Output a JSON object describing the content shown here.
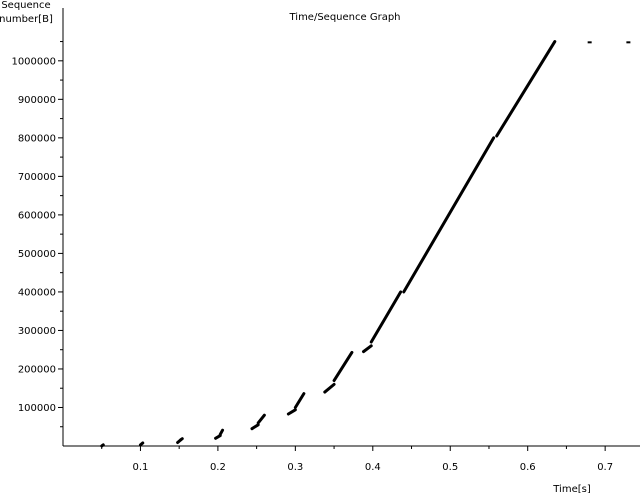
{
  "chart_data": {
    "type": "scatter",
    "title": "Time/Sequence Graph",
    "ylabel_lines": [
      "Sequence",
      "number[B]"
    ],
    "xlabel": "Time[s]",
    "xlim": [
      0.0,
      0.745
    ],
    "ylim": [
      0,
      1080000
    ],
    "x_ticks": [
      {
        "v": 0.1,
        "label": "0.1"
      },
      {
        "v": 0.2,
        "label": "0.2"
      },
      {
        "v": 0.3,
        "label": "0.3"
      },
      {
        "v": 0.4,
        "label": "0.4"
      },
      {
        "v": 0.5,
        "label": "0.5"
      },
      {
        "v": 0.6,
        "label": "0.6"
      },
      {
        "v": 0.7,
        "label": "0.7"
      }
    ],
    "y_ticks": [
      {
        "v": 100000,
        "label": "100000"
      },
      {
        "v": 200000,
        "label": "200000"
      },
      {
        "v": 300000,
        "label": "300000"
      },
      {
        "v": 400000,
        "label": "400000"
      },
      {
        "v": 500000,
        "label": "500000"
      },
      {
        "v": 600000,
        "label": "600000"
      },
      {
        "v": 700000,
        "label": "700000"
      },
      {
        "v": 800000,
        "label": "800000"
      },
      {
        "v": 900000,
        "label": "900000"
      },
      {
        "v": 1000000,
        "label": "1000000"
      }
    ],
    "segments": [
      {
        "x": [
          0.05,
          0.052
        ],
        "y": [
          0,
          3000
        ]
      },
      {
        "x": [
          0.1,
          0.103
        ],
        "y": [
          3000,
          8000
        ]
      },
      {
        "x": [
          0.148,
          0.152
        ],
        "y": [
          9000,
          16000
        ]
      },
      {
        "x": [
          0.152,
          0.154
        ],
        "y": [
          16000,
          19000
        ]
      },
      {
        "x": [
          0.197,
          0.203
        ],
        "y": [
          20000,
          27000
        ]
      },
      {
        "x": [
          0.203,
          0.206
        ],
        "y": [
          30000,
          41000
        ]
      },
      {
        "x": [
          0.244,
          0.252
        ],
        "y": [
          45000,
          55000
        ]
      },
      {
        "x": [
          0.252,
          0.26
        ],
        "y": [
          60000,
          80000
        ]
      },
      {
        "x": [
          0.291,
          0.3
        ],
        "y": [
          83000,
          94000
        ]
      },
      {
        "x": [
          0.3,
          0.311
        ],
        "y": [
          100000,
          136000
        ]
      },
      {
        "x": [
          0.338,
          0.35
        ],
        "y": [
          140000,
          160000
        ]
      },
      {
        "x": [
          0.35,
          0.373
        ],
        "y": [
          170000,
          243000
        ]
      },
      {
        "x": [
          0.388,
          0.398
        ],
        "y": [
          245000,
          260000
        ]
      },
      {
        "x": [
          0.398,
          0.436
        ],
        "y": [
          270000,
          400000
        ]
      },
      {
        "x": [
          0.44,
          0.556
        ],
        "y": [
          400000,
          800000
        ]
      },
      {
        "x": [
          0.56,
          0.635
        ],
        "y": [
          805000,
          1050000
        ]
      }
    ],
    "isolated_points": [
      {
        "x": 0.68,
        "y": 1048000
      },
      {
        "x": 0.73,
        "y": 1048000
      }
    ],
    "grid": false
  }
}
